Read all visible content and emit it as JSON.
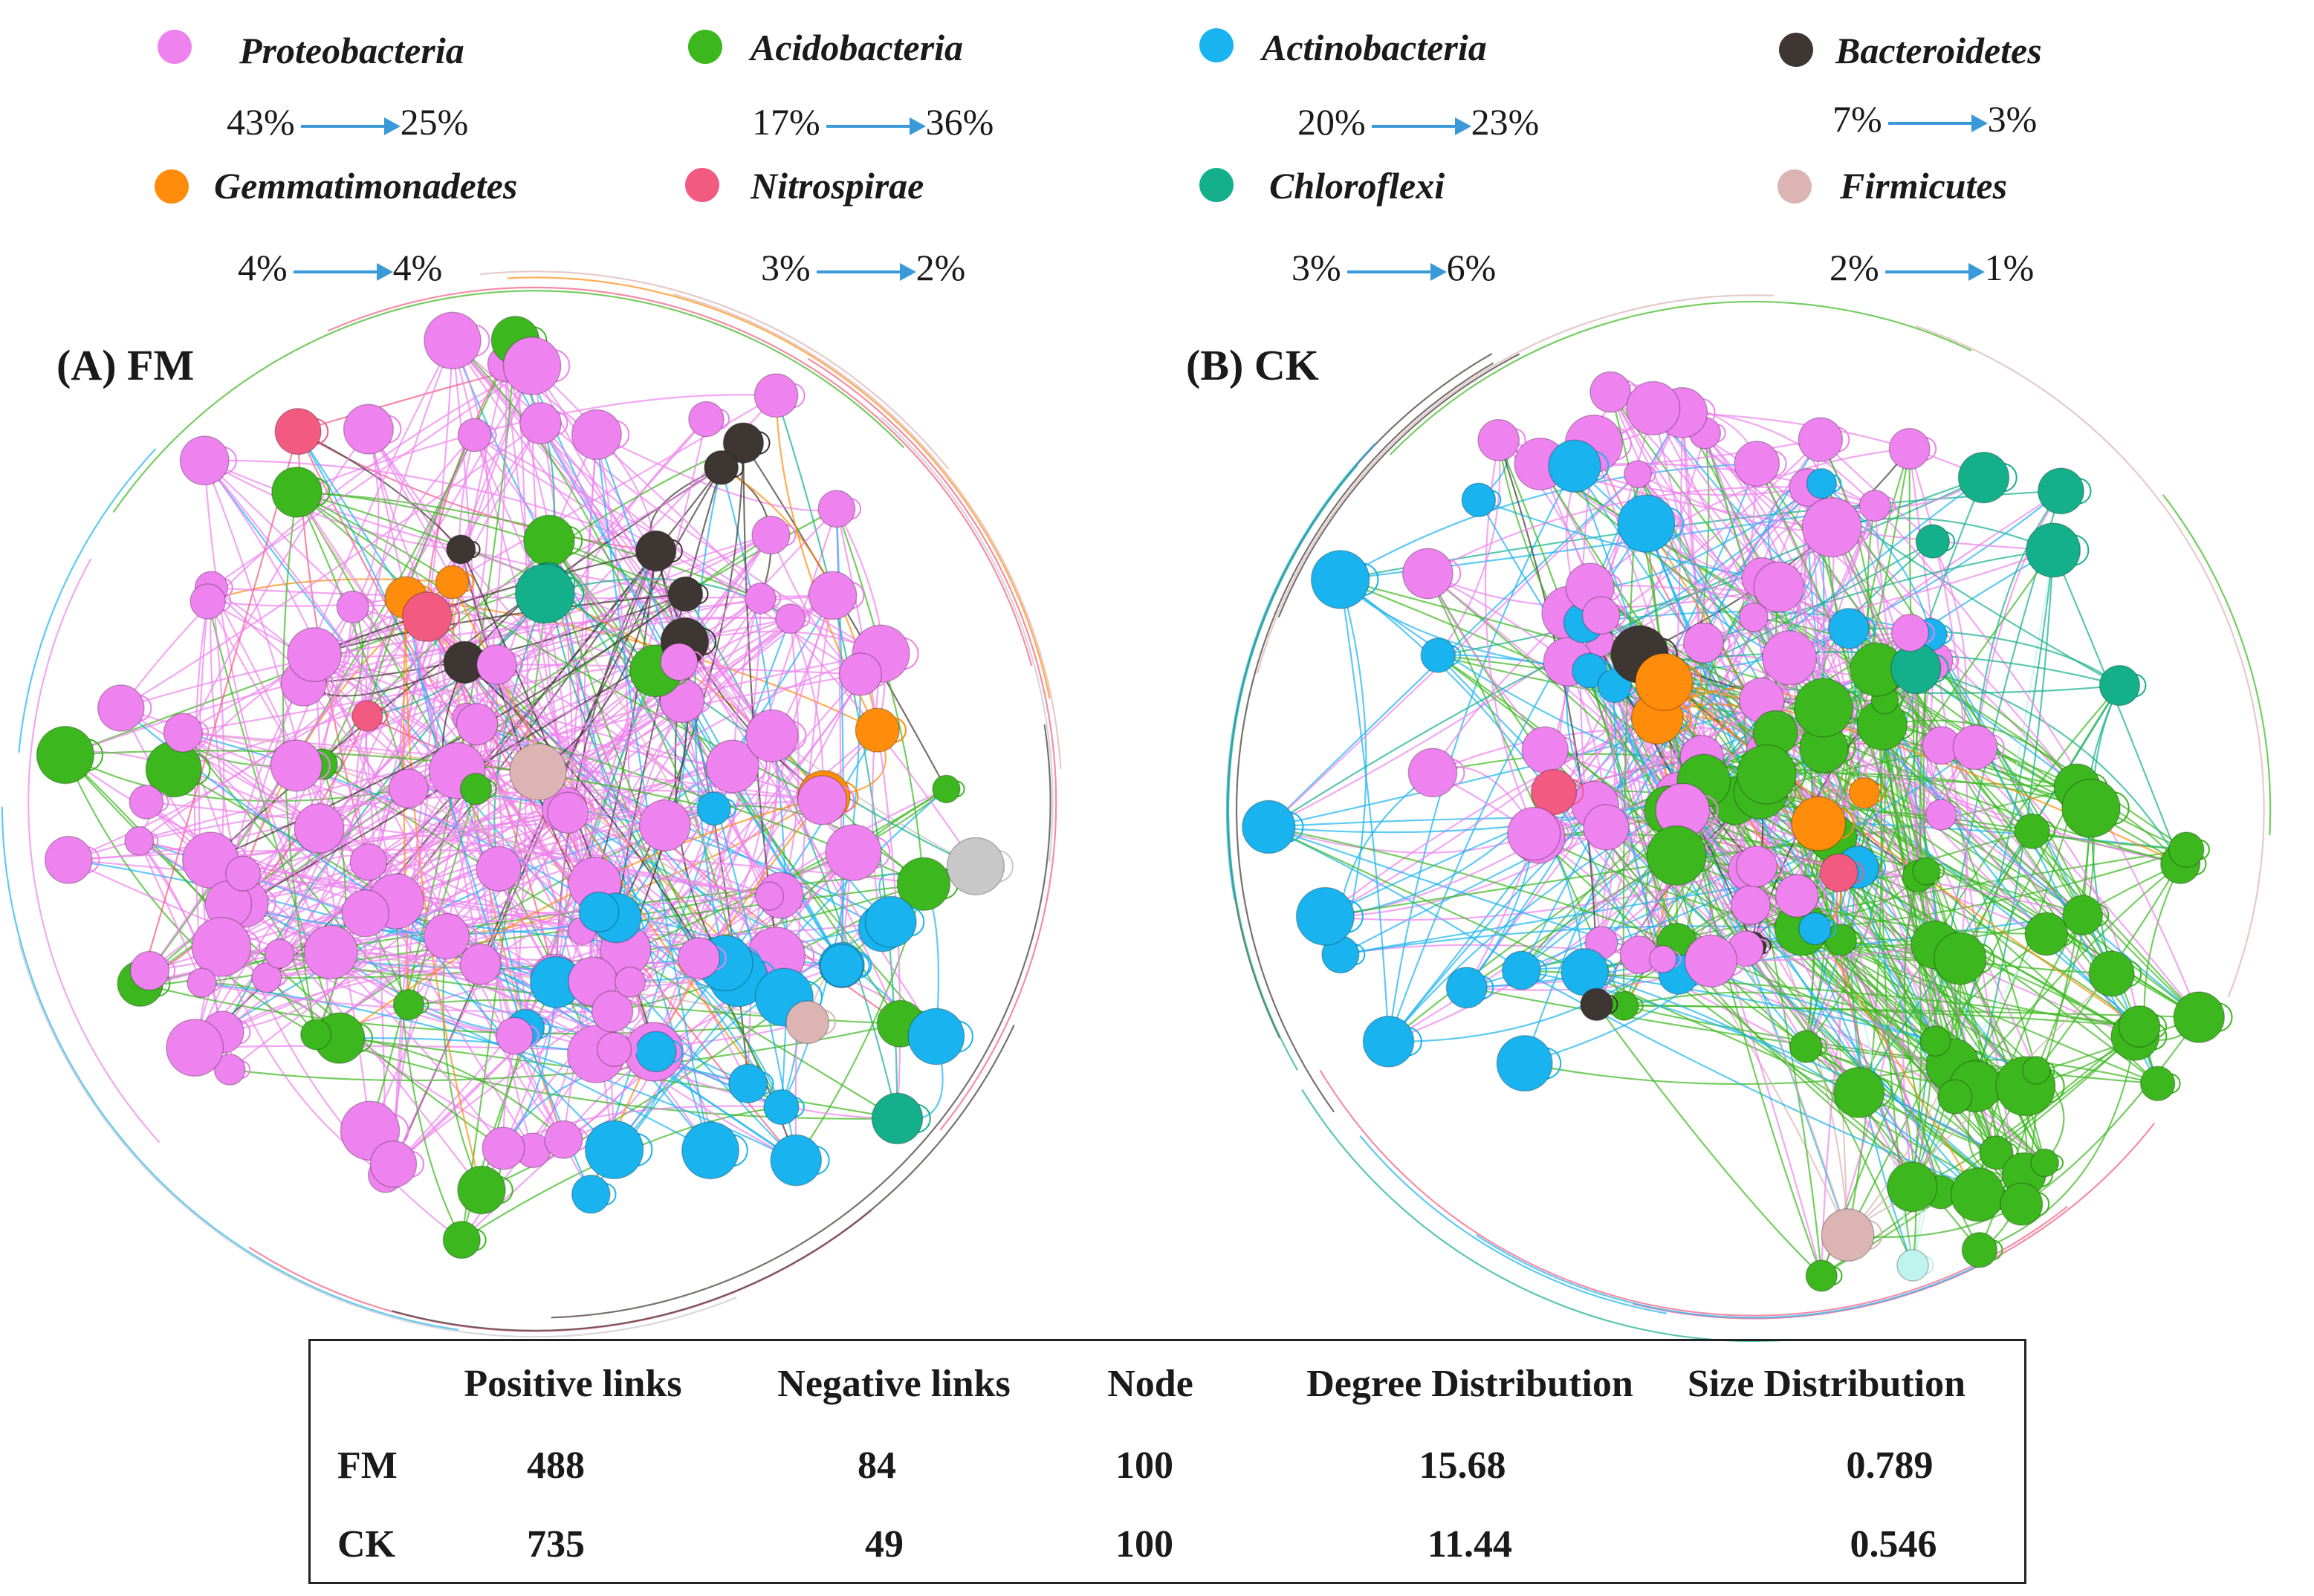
{
  "legend": {
    "items": [
      {
        "name": "Proteobacteria",
        "color": "#ee82ee",
        "from": "43%",
        "to": "25%"
      },
      {
        "name": "Acidobacteria",
        "color": "#3cb81e",
        "from": "17%",
        "to": "36%"
      },
      {
        "name": "Actinobacteria",
        "color": "#19b4f0",
        "from": "20%",
        "to": "23%"
      },
      {
        "name": "Bacteroidetes",
        "color": "#3e3632",
        "from": "7%",
        "to": "3%"
      },
      {
        "name": "Gemmatimonadetes",
        "color": "#ff8c0a",
        "from": "4%",
        "to": "4%"
      },
      {
        "name": "Nitrospirae",
        "color": "#f25a82",
        "from": "3%",
        "to": "2%"
      },
      {
        "name": "Chloroflexi",
        "color": "#14b08c",
        "from": "3%",
        "to": "6%"
      },
      {
        "name": "Firmicutes",
        "color": "#dcb4b4",
        "from": "2%",
        "to": "1%"
      }
    ]
  },
  "panels": {
    "fm_label": "(A) FM",
    "ck_label": "(B) CK"
  },
  "stats": {
    "headers": [
      "Positive links",
      "Negative links",
      "Node",
      "Degree Distribution",
      "Size Distribution"
    ],
    "rows": [
      {
        "label": "FM",
        "values": [
          "488",
          "84",
          "100",
          "15.68",
          "0.789"
        ]
      },
      {
        "label": "CK",
        "values": [
          "735",
          "49",
          "100",
          "11.44",
          "0.546"
        ]
      }
    ]
  }
}
